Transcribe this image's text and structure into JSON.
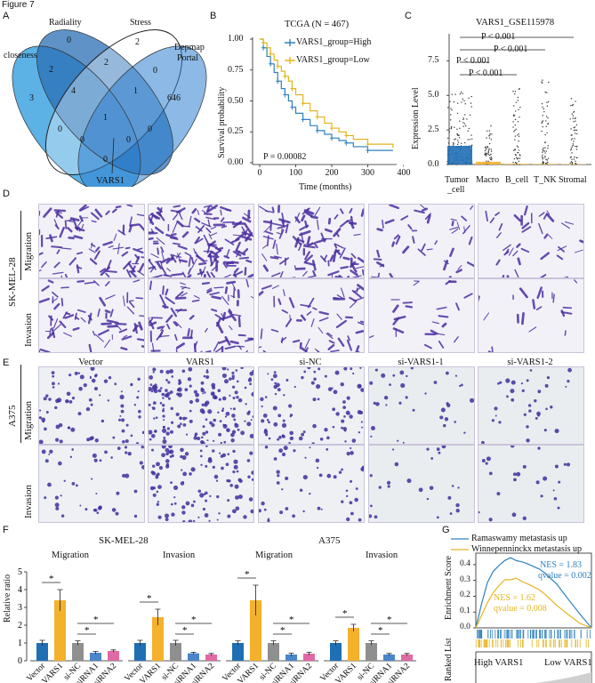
{
  "figure_title": "Figure 7",
  "panels": {
    "a": "A",
    "b": "B",
    "c": "C",
    "d": "D",
    "e": "E",
    "f": "F",
    "g": "G"
  },
  "venn": {
    "sets": [
      "closeness",
      "Radiality",
      "Stress",
      "Depmap Portal"
    ],
    "depmap_line2": "Portal",
    "depmap_line1": "Depmap",
    "counts": [
      "3",
      "2",
      "0",
      "2",
      "4",
      "2",
      "0",
      "646",
      "1",
      "0",
      "1",
      "0",
      "0",
      "0",
      "0"
    ],
    "gene_label": "VARS1"
  },
  "survival": {
    "title": "TCGA (N = 467)",
    "legend": [
      "VARS1_group=High",
      "VARS1_group=Low"
    ],
    "xlabel": "Time (months)",
    "ylabel": "Survival probability",
    "pvalue": "P = 0.00082",
    "xticks": [
      "0",
      "100",
      "200",
      "300",
      "400"
    ],
    "yticks": [
      "0.00",
      "0.25",
      "0.50",
      "0.75",
      "1.00"
    ],
    "colors": {
      "high": "#2f82bd",
      "low": "#e3b51e"
    }
  },
  "expression": {
    "title": "VARS1_GSE115978",
    "ylabel": "Expression Level",
    "categories": [
      "Tumor\n_cell",
      "Macro",
      "B_cell",
      "T_NK",
      "Stromal"
    ],
    "cat_labels": [
      "Tumor",
      "_cell",
      "Macro",
      "B_cell",
      "T_NK",
      "Stromal"
    ],
    "yticks": [
      "0.0",
      "2.5",
      "5.0",
      "7.5"
    ],
    "pvals": [
      "P < 0.001",
      "P < 0.001",
      "P < 0.001",
      "P < 0.001"
    ]
  },
  "images": {
    "columns": [
      "Vector",
      "VARS1",
      "si-NC",
      "si-VARS1-1",
      "si-VARS1-2"
    ],
    "cell_line_d": "SK-MEL-28",
    "cell_line_e": "A375",
    "row_migration": "Migration",
    "row_invasion": "Invasion"
  },
  "bars": {
    "title_left": "SK-MEL-28",
    "title_right": "A375",
    "sub_migration": "Migration",
    "sub_invasion": "Invasion",
    "ylabel": "Relative ratio",
    "yticks": [
      "0",
      "1",
      "2",
      "3",
      "4",
      "5"
    ],
    "groups": [
      "Vector",
      "VARS1",
      "si-NC",
      "siRNA1",
      "siRNA2"
    ],
    "star": "*",
    "colors": [
      "#1f6fb5",
      "#f4b12c",
      "#8f8f8f",
      "#4a86c8",
      "#e06aa3"
    ]
  },
  "chart_data": [
    {
      "type": "line",
      "title": "TCGA (N = 467)",
      "xlabel": "Time (months)",
      "ylabel": "Survival probability",
      "xlim": [
        0,
        400
      ],
      "ylim": [
        0,
        1
      ],
      "series": [
        {
          "name": "VARS1_group=High",
          "x": [
            0,
            10,
            20,
            30,
            40,
            50,
            60,
            70,
            80,
            90,
            100,
            120,
            140,
            160,
            180,
            200,
            220,
            240,
            260,
            300,
            370
          ],
          "y": [
            1.0,
            0.93,
            0.86,
            0.8,
            0.73,
            0.66,
            0.6,
            0.55,
            0.5,
            0.45,
            0.4,
            0.35,
            0.3,
            0.26,
            0.23,
            0.2,
            0.18,
            0.16,
            0.13,
            0.1,
            0.1
          ]
        },
        {
          "name": "VARS1_group=Low",
          "x": [
            0,
            10,
            20,
            30,
            40,
            50,
            60,
            70,
            80,
            90,
            100,
            120,
            140,
            160,
            180,
            200,
            220,
            240,
            260,
            300,
            370
          ],
          "y": [
            1.0,
            0.97,
            0.93,
            0.88,
            0.83,
            0.78,
            0.74,
            0.7,
            0.66,
            0.6,
            0.55,
            0.48,
            0.42,
            0.37,
            0.32,
            0.28,
            0.25,
            0.22,
            0.19,
            0.15,
            0.12
          ]
        }
      ],
      "annotation": "P = 0.00082"
    },
    {
      "type": "bar",
      "title": "VARS1_GSE115978",
      "ylabel": "Expression Level",
      "categories": [
        "Tumor_cell",
        "Macro",
        "B_cell",
        "T_NK",
        "Stromal"
      ],
      "values": [
        1.35,
        0.2,
        0.05,
        0.04,
        0.03
      ],
      "ylim": [
        0,
        9
      ]
    },
    {
      "type": "bar",
      "title": "SK-MEL-28 Migration",
      "ylabel": "Relative ratio",
      "categories": [
        "Vector",
        "VARS1",
        "si-NC",
        "siRNA1",
        "siRNA2"
      ],
      "values": [
        1.0,
        3.4,
        1.0,
        0.45,
        0.55
      ],
      "errors": [
        0.15,
        0.6,
        0.12,
        0.08,
        0.06
      ],
      "ylim": [
        0,
        5
      ]
    },
    {
      "type": "bar",
      "title": "SK-MEL-28 Invasion",
      "ylabel": "Relative ratio",
      "categories": [
        "Vector",
        "VARS1",
        "si-NC",
        "siRNA1",
        "siRNA2"
      ],
      "values": [
        1.0,
        2.45,
        1.0,
        0.42,
        0.35
      ],
      "errors": [
        0.15,
        0.45,
        0.15,
        0.06,
        0.06
      ],
      "ylim": [
        0,
        5
      ]
    },
    {
      "type": "bar",
      "title": "A375 Migration",
      "ylabel": "Relative ratio",
      "categories": [
        "Vector",
        "VARS1",
        "si-NC",
        "siRNA1",
        "siRNA2"
      ],
      "values": [
        1.0,
        3.4,
        1.0,
        0.35,
        0.4
      ],
      "errors": [
        0.12,
        0.85,
        0.12,
        0.08,
        0.08
      ],
      "ylim": [
        0,
        5
      ]
    },
    {
      "type": "bar",
      "title": "A375 Invasion",
      "ylabel": "Relative ratio",
      "categories": [
        "Vector",
        "VARS1",
        "si-NC",
        "siRNA1",
        "siRNA2"
      ],
      "values": [
        1.0,
        1.85,
        1.0,
        0.35,
        0.35
      ],
      "errors": [
        0.12,
        0.2,
        0.12,
        0.06,
        0.06
      ],
      "ylim": [
        0,
        5
      ]
    },
    {
      "type": "line",
      "ylabel": "Enrichment Score",
      "series": [
        {
          "name": "Ramaswamy metastasis up",
          "nes": "NES = 1.83",
          "q": "qvalue = 0.002",
          "x": [
            0,
            0.05,
            0.1,
            0.15,
            0.2,
            0.25,
            0.3,
            0.35,
            0.4,
            0.45,
            0.5,
            0.55,
            0.6,
            0.7,
            0.8,
            0.9,
            1.0
          ],
          "y": [
            0,
            0.15,
            0.28,
            0.36,
            0.4,
            0.43,
            0.44,
            0.43,
            0.42,
            0.4,
            0.39,
            0.37,
            0.34,
            0.27,
            0.18,
            0.09,
            0.0
          ]
        },
        {
          "name": "Winnepenninckx metastasis up",
          "nes": "NES = 1.62",
          "q": "qvalue = 0.008",
          "x": [
            0,
            0.05,
            0.1,
            0.15,
            0.2,
            0.25,
            0.3,
            0.35,
            0.4,
            0.45,
            0.5,
            0.55,
            0.6,
            0.7,
            0.8,
            0.9,
            1.0
          ],
          "y": [
            0,
            0.08,
            0.16,
            0.22,
            0.27,
            0.3,
            0.31,
            0.31,
            0.3,
            0.28,
            0.26,
            0.24,
            0.21,
            0.14,
            0.08,
            0.03,
            0.0
          ]
        }
      ],
      "ylim": [
        0,
        0.45
      ]
    }
  ],
  "gsea": {
    "legend": [
      "Ramaswamy metastasis up",
      "Winnepenninckx metastasis up"
    ],
    "ylabel_top": "Enrichment Score",
    "ylabel_bottom": "Ranked List",
    "nes1": "NES = 1.83",
    "q1": "qvalue = 0.002",
    "nes2": "NES = 1.62",
    "q2": "qvalue = 0.008",
    "yticks": [
      "0.0",
      "0.1",
      "0.2",
      "0.3",
      "0.4"
    ],
    "high_label": "High VARS1",
    "low_label": "Low VARS1",
    "colors": {
      "s1": "#2f82bd",
      "s2": "#e3b51e"
    }
  }
}
